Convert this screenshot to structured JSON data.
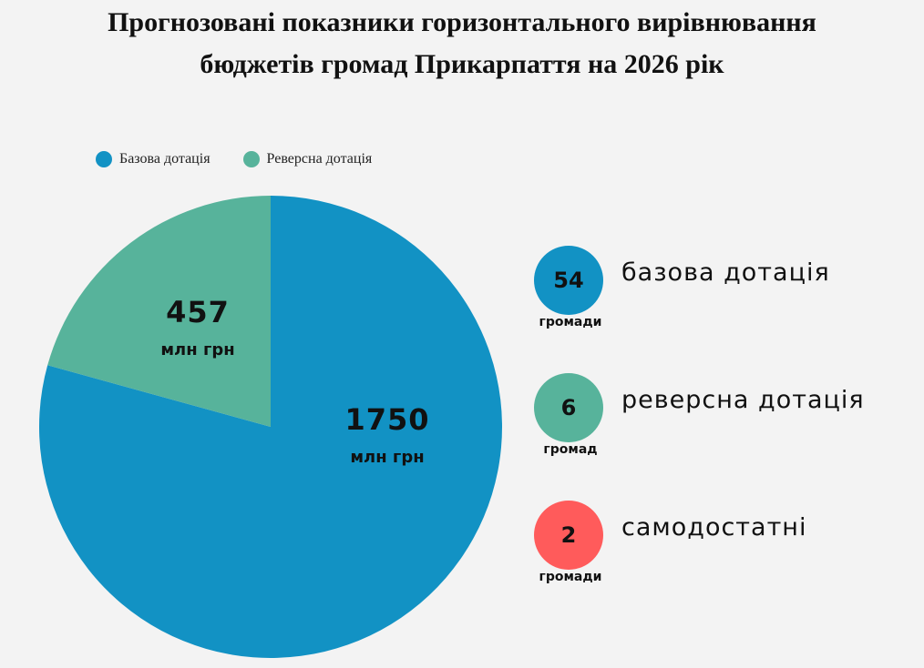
{
  "title_line1": "Прогнозовані показники горизонтального вирівнювання",
  "title_line2": "бюджетів громад Прикарпаття на 2026 рік",
  "chart_data": {
    "type": "pie",
    "title": "Прогнозовані показники горизонтального вирівнювання бюджетів громад Прикарпаття на 2026 рік",
    "legend_position": "top-left",
    "series": [
      {
        "name": "Базова дотація",
        "value": 1750,
        "value_label": "1750",
        "unit": "млн грн",
        "color": "#1292c4"
      },
      {
        "name": "Реверсна дотація",
        "value": 457,
        "value_label": "457",
        "unit": "млн грн",
        "color": "#57b39b"
      }
    ]
  },
  "stats": [
    {
      "number": "54",
      "unit": "громади",
      "label": "базова дотація",
      "color": "#1292c4"
    },
    {
      "number": "6",
      "unit": "громад",
      "label": "реверсна дотація",
      "color": "#57b39b"
    },
    {
      "number": "2",
      "unit": "громади",
      "label": "самодостатні",
      "color": "#ff5b5b"
    }
  ]
}
